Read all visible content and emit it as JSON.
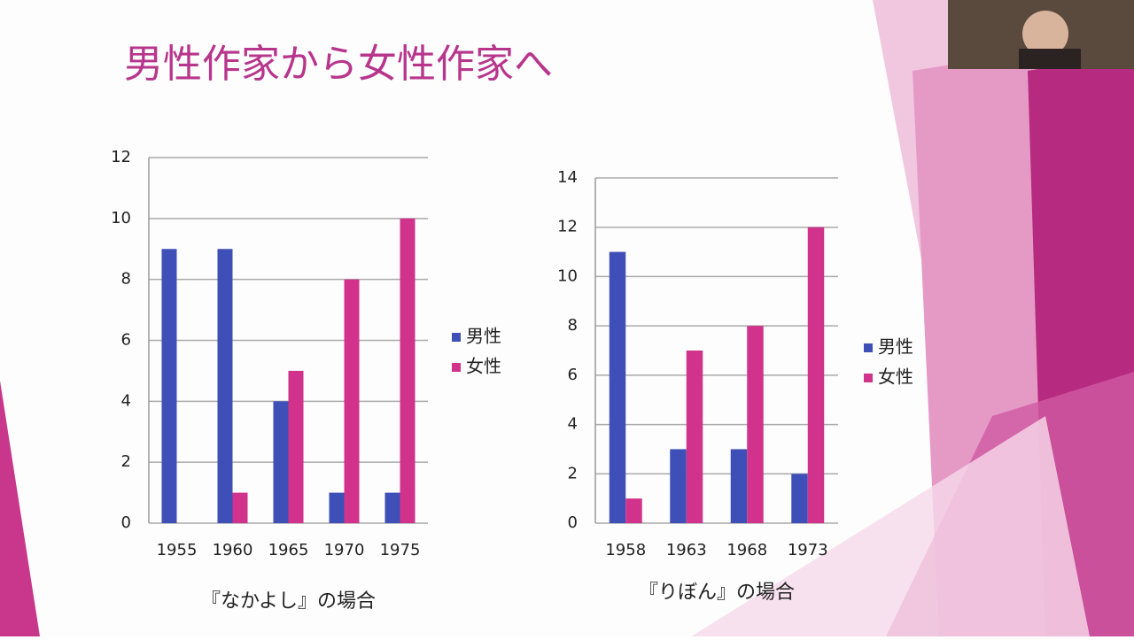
{
  "title": "男性作家から女性作家へ",
  "chart_data": [
    {
      "type": "bar",
      "caption": "『なかよし』の場合",
      "categories": [
        "1955",
        "1960",
        "1965",
        "1970",
        "1975"
      ],
      "series": [
        {
          "name": "男性",
          "color": "#3f4fb8",
          "values": [
            9,
            9,
            4,
            1,
            1
          ]
        },
        {
          "name": "女性",
          "color": "#d1338c",
          "values": [
            0,
            1,
            5,
            8,
            10
          ]
        }
      ],
      "ylim": [
        0,
        12
      ],
      "yticks": [
        0,
        2,
        4,
        6,
        8,
        10,
        12
      ],
      "grid": true,
      "legend": "right"
    },
    {
      "type": "bar",
      "caption": "『りぼん』の場合",
      "categories": [
        "1958",
        "1963",
        "1968",
        "1973"
      ],
      "series": [
        {
          "name": "男性",
          "color": "#3f4fb8",
          "values": [
            11,
            3,
            3,
            2
          ]
        },
        {
          "name": "女性",
          "color": "#d1338c",
          "values": [
            1,
            7,
            8,
            12
          ]
        }
      ],
      "ylim": [
        0,
        14
      ],
      "yticks": [
        0,
        2,
        4,
        6,
        8,
        10,
        12,
        14
      ],
      "grid": true,
      "legend": "right"
    }
  ]
}
